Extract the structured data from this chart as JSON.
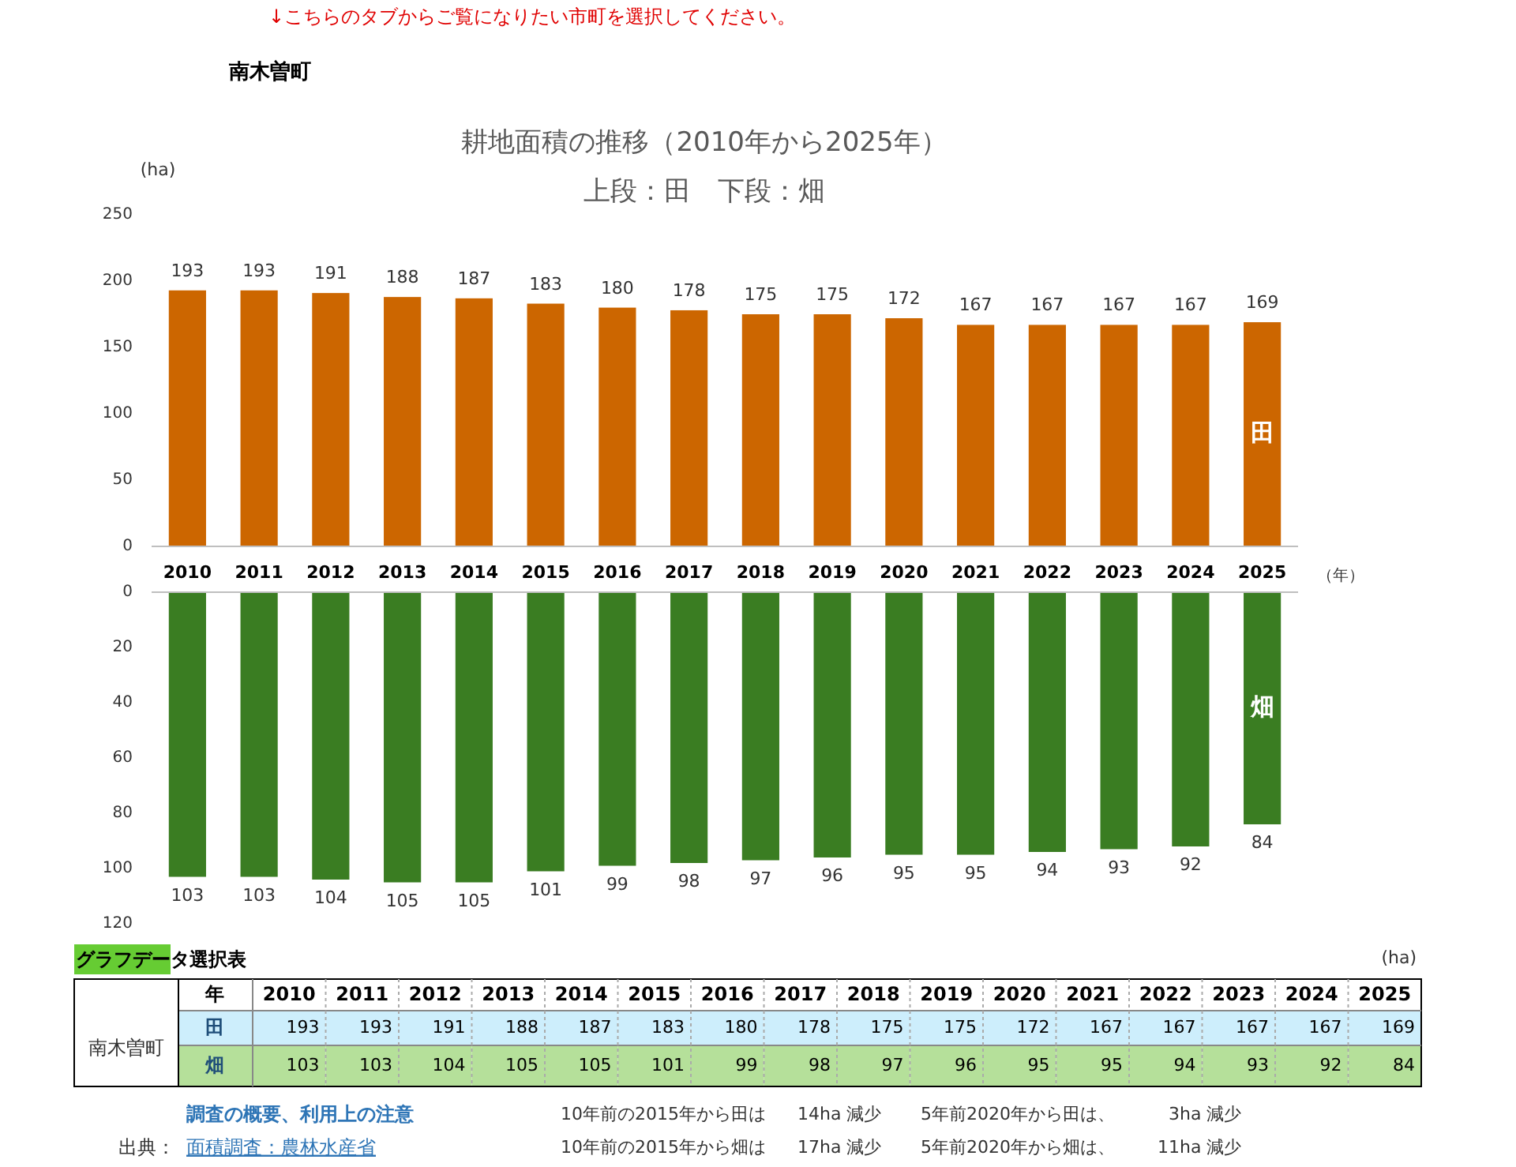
{
  "chart_data": [
    {
      "type": "bar",
      "title": "耕地面積の推移（2010年から2025年）",
      "subtitle": "上段：田　下段：畑",
      "ylabel": "(ha)",
      "xlabel": "（年）",
      "categories": [
        "2010",
        "2011",
        "2012",
        "2013",
        "2014",
        "2015",
        "2016",
        "2017",
        "2018",
        "2019",
        "2020",
        "2021",
        "2022",
        "2023",
        "2024",
        "2025"
      ],
      "series": [
        {
          "name": "田",
          "color": "#cc6600",
          "values": [
            193,
            193,
            191,
            188,
            187,
            183,
            180,
            178,
            175,
            175,
            172,
            167,
            167,
            167,
            167,
            169
          ]
        }
      ],
      "ylim": [
        0,
        250
      ],
      "yticks": [
        0,
        50,
        100,
        150,
        200,
        250
      ],
      "data_labels": true,
      "annotations": [
        "↓こちらのタブからご覧になりたい市町を選択してください。",
        "南木曽町"
      ]
    },
    {
      "type": "bar",
      "categories": [
        null,
        null,
        null,
        null,
        null,
        null,
        null,
        null,
        null,
        null,
        null,
        null,
        null,
        null,
        null,
        null
      ],
      "series": [
        {
          "name": "畑",
          "color": "#3a7d22",
          "values": [
            103,
            103,
            104,
            105,
            105,
            101,
            99,
            98,
            97,
            96,
            95,
            95,
            94,
            93,
            92,
            84
          ]
        }
      ],
      "ylim": [
        120,
        0
      ],
      "yticks": [
        0,
        20,
        40,
        60,
        80,
        100,
        120
      ],
      "data_labels": true
    },
    {
      "type": "heatmap",
      "categories": [
        "2010",
        "2011",
        "2012",
        "2013",
        "2014",
        "2015",
        "2016",
        "2017",
        "2018",
        "2019",
        "2020",
        "2021",
        "2022",
        "2023",
        "2024",
        "2025"
      ],
      "y_categories": [
        "田",
        "畑"
      ],
      "colors": [
        "#cdeefc",
        "#b5e09a"
      ],
      "data_labels": true,
      "cells": [
        [
          193,
          193,
          191,
          188,
          187,
          183,
          180,
          178,
          175,
          175,
          172,
          167,
          167,
          167,
          167,
          169
        ],
        [
          103,
          103,
          104,
          105,
          105,
          101,
          99,
          98,
          97,
          96,
          95,
          95,
          94,
          93,
          92,
          84
        ]
      ],
      "annotations": [
        "グラフデータ選択表",
        "(ha)",
        "年",
        "南木曽町",
        "調査の概要、利用上の注意",
        "出典：",
        "面積調査：農林水産省",
        "10年前の2015年から田は",
        "14ha 減少",
        "5年前2020年から田は、",
        "3ha 減少",
        "10年前の2015年から畑は",
        "17ha 減少",
        "5年前2020年から畑は、",
        "11ha 減少"
      ]
    }
  ]
}
